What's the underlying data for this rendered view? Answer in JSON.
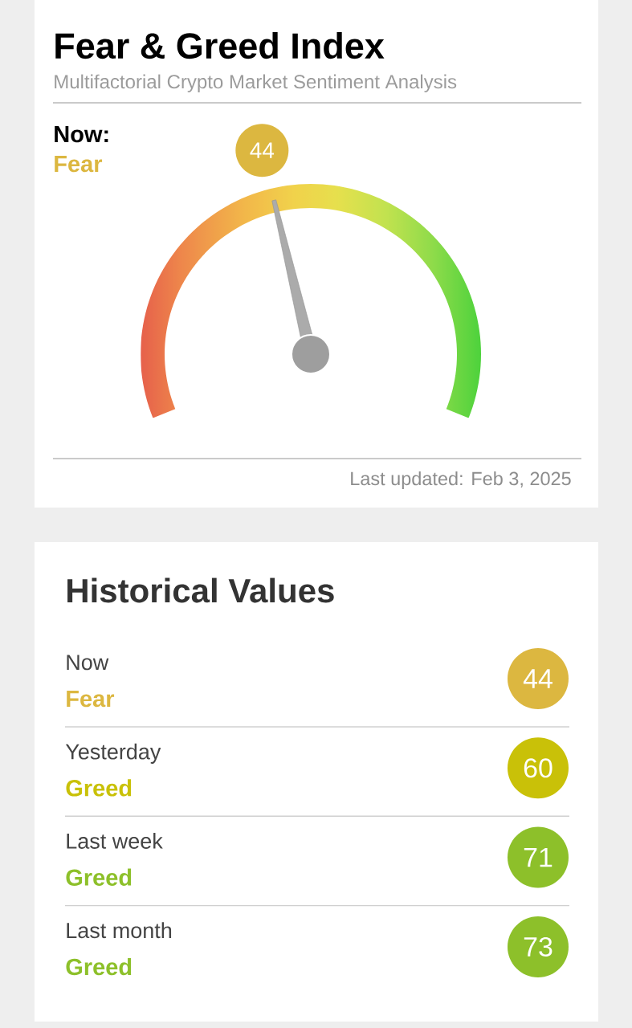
{
  "chart_data": [
    {
      "type": "other",
      "title": "Fear & Greed Index",
      "subtitle": "Multifactorial Crypto Market Sentiment Analysis",
      "values": [
        44
      ],
      "colors": [
        "#dcb740"
      ],
      "data_labels": true,
      "annotations": [
        "Now:",
        "Fear",
        "Last updated: Feb 3, 2025"
      ]
    },
    {
      "type": "other",
      "title": "Historical Values",
      "categories": [
        "Now",
        "Yesterday",
        "Last week",
        "Last month"
      ],
      "values": [
        44,
        60,
        71,
        73
      ],
      "colors": [
        "#dcb740",
        "#c9c108",
        "#8dc02a",
        "#8dc02a"
      ],
      "data_labels": true,
      "annotations": [
        "Fear",
        "Greed",
        "Greed",
        "Greed"
      ]
    }
  ]
}
